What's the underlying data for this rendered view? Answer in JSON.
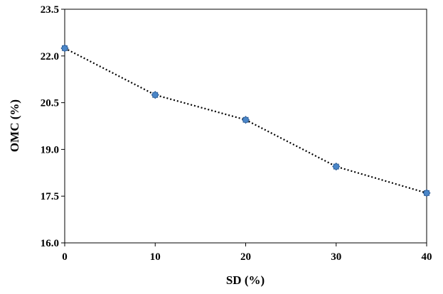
{
  "chart_data": {
    "type": "scatter",
    "title": "",
    "xlabel": "SD (%)",
    "ylabel": "OMC (%)",
    "xlim": [
      0,
      40
    ],
    "ylim": [
      16.0,
      23.5
    ],
    "x_ticks": [
      "0",
      "10",
      "20",
      "30",
      "40"
    ],
    "y_ticks": [
      "16.0",
      "17.5",
      "19.0",
      "20.5",
      "22.0",
      "23.5"
    ],
    "grid": false,
    "legend": "none",
    "line_style": "dotted",
    "marker_color": "#4a86c8",
    "line_color": "#000000",
    "series": [
      {
        "x": [
          0,
          10,
          20,
          30,
          40
        ],
        "y": [
          22.25,
          20.75,
          19.95,
          18.45,
          17.6
        ]
      }
    ]
  }
}
